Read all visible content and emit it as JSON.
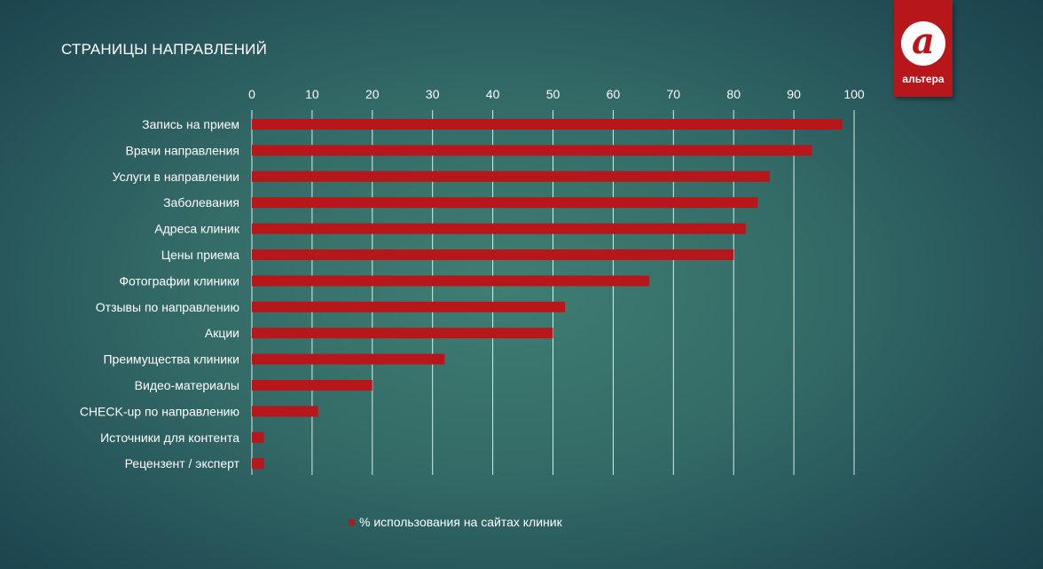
{
  "title": "СТРАНИЦЫ НАПРАВЛЕНИЙ",
  "logo": {
    "mark": "a",
    "text": "альтера"
  },
  "chart_data": {
    "type": "bar",
    "orientation": "horizontal",
    "title": "СТРАНИЦЫ НАПРАВЛЕНИЙ",
    "categories": [
      "Запись на прием",
      "Врачи направления",
      "Услуги в направлении",
      "Заболевания",
      "Адреса клиник",
      "Цены приема",
      "Фотографии клиники",
      "Отзывы по направлению",
      "Акции",
      "Преимущества клиники",
      "Видео-материалы",
      "CHECK-up по направлению",
      "Источники для контента",
      "Рецензент / эксперт"
    ],
    "series": [
      {
        "name": "% использования на сайтах клиник",
        "values": [
          98,
          93,
          86,
          84,
          82,
          80,
          66,
          52,
          50,
          32,
          20,
          11,
          2,
          2
        ],
        "color": "#b7161a"
      }
    ],
    "xlim": [
      0,
      100
    ],
    "xticks": [
      "0",
      "10",
      "20",
      "30",
      "40",
      "50",
      "60",
      "70",
      "80",
      "90",
      "100"
    ],
    "xaxis_position": "top",
    "grid": true,
    "legend": "bottom"
  }
}
